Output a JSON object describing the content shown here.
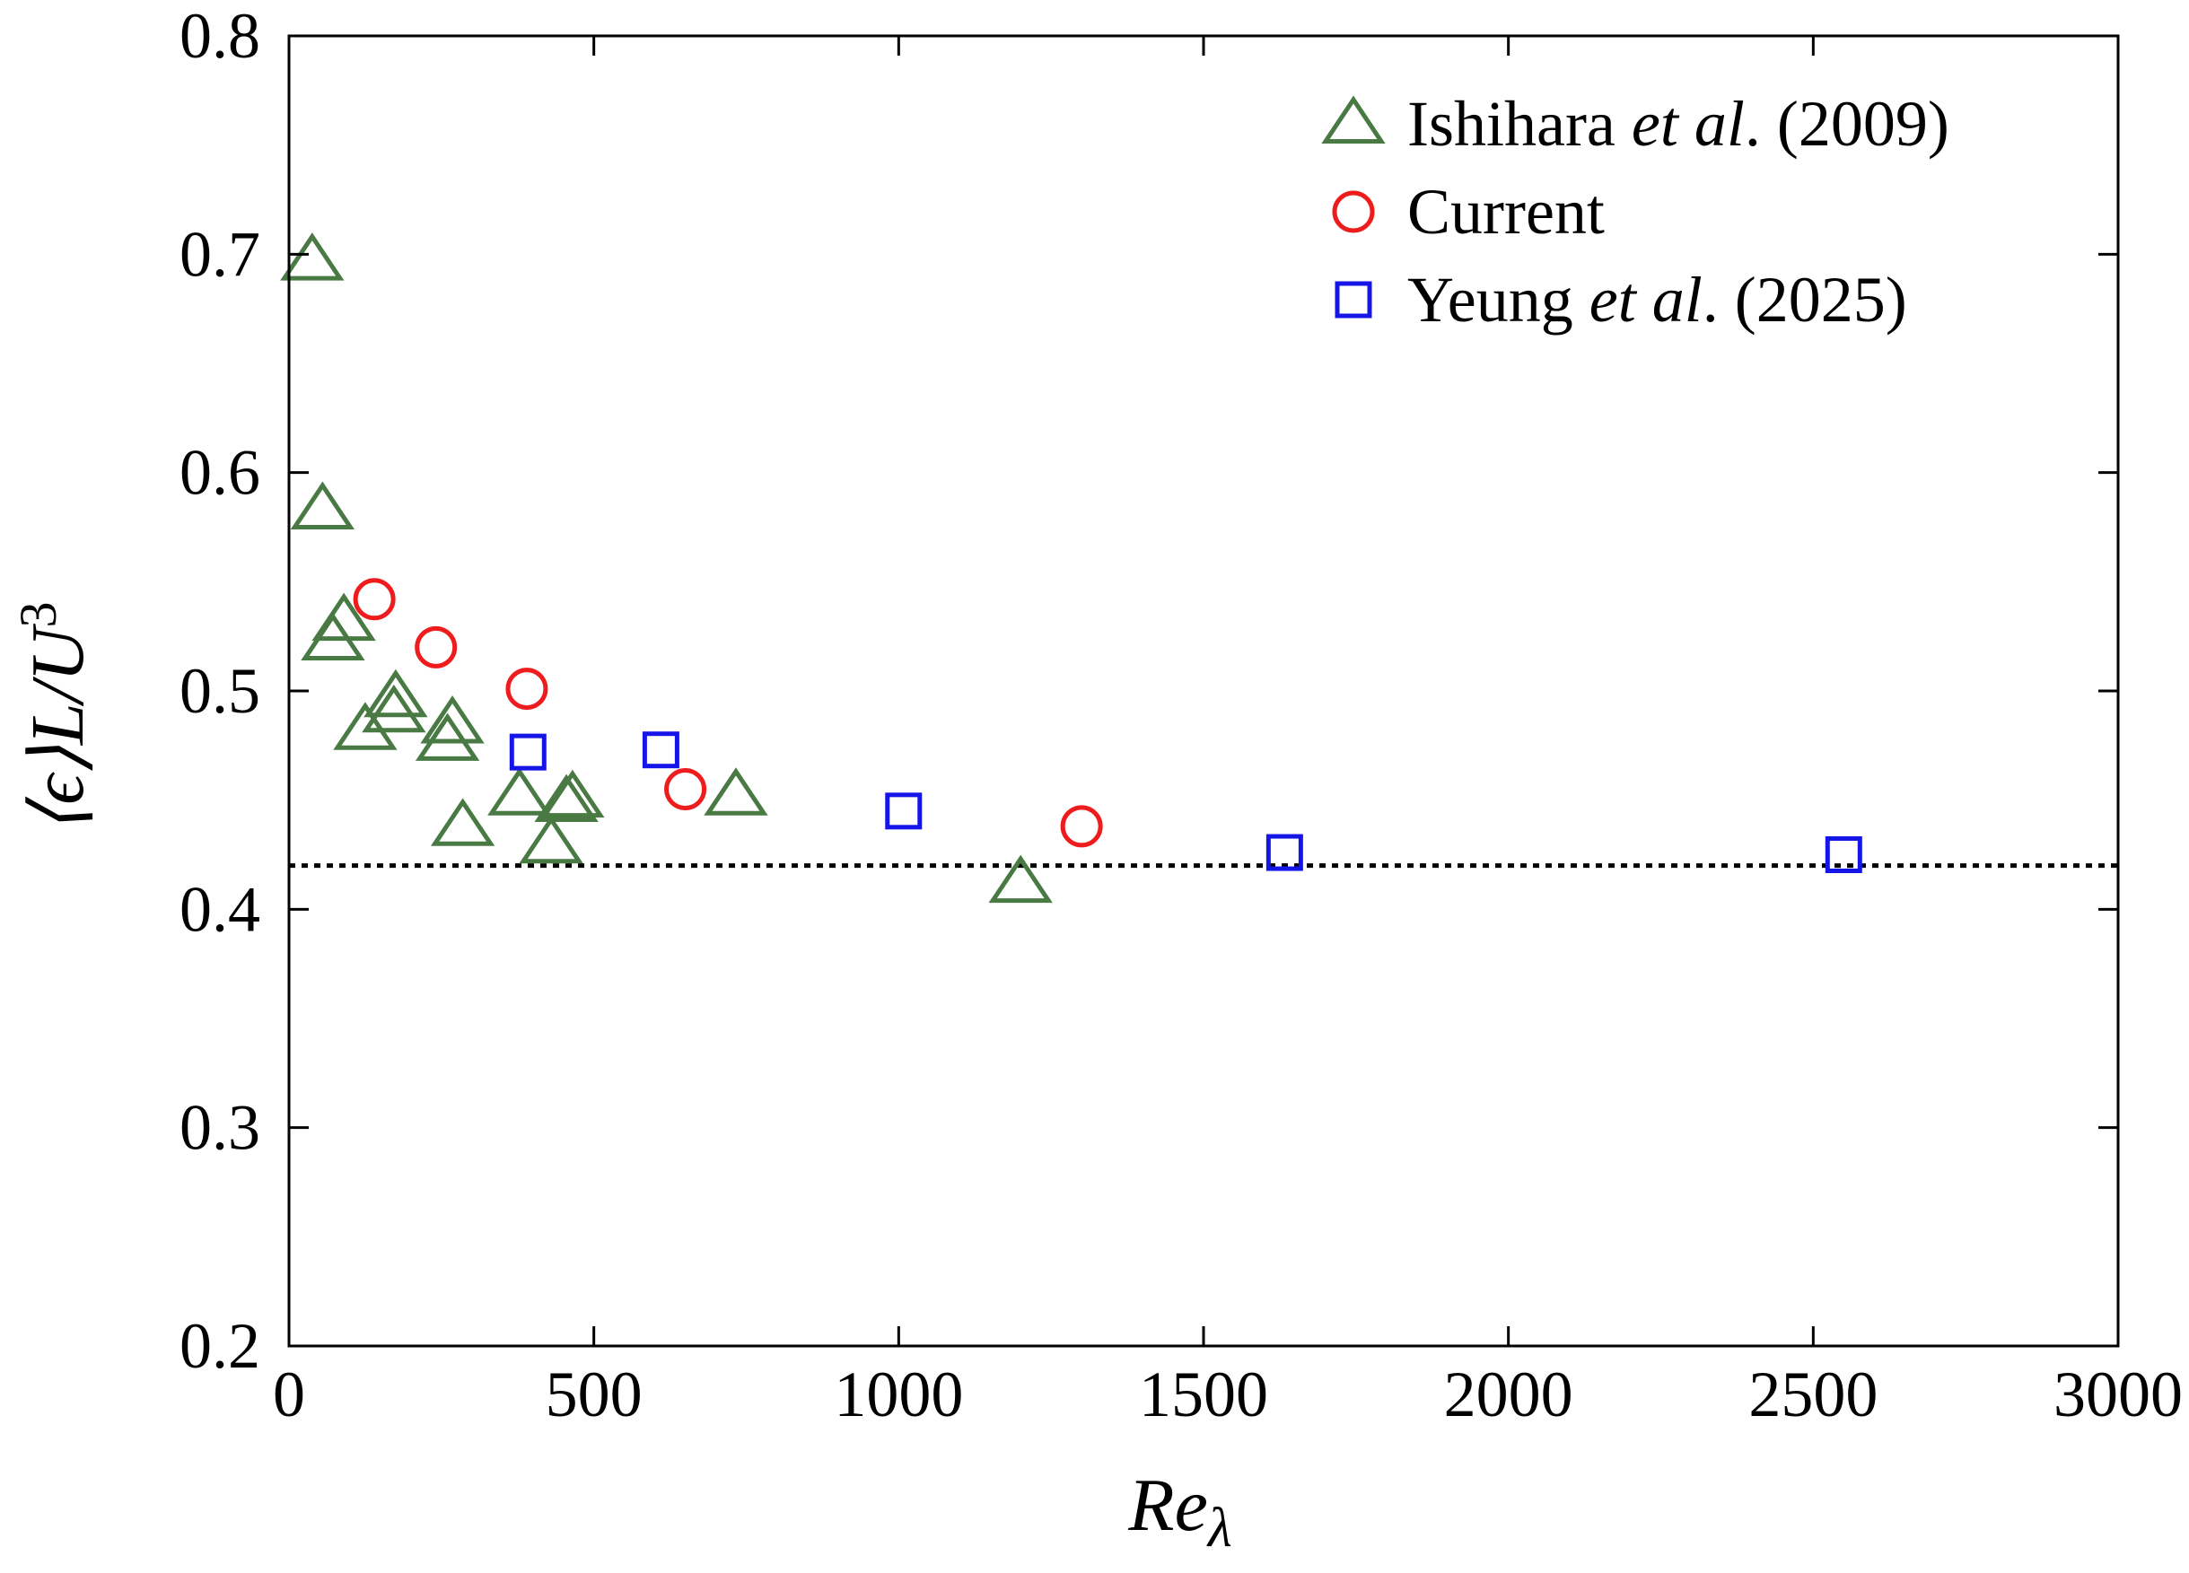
{
  "chart_data": {
    "type": "scatter",
    "xlabel": "Reλ",
    "ylabel": "⟨ϵ⟩L/U³",
    "xlim": [
      0,
      3000
    ],
    "ylim": [
      0.2,
      0.8
    ],
    "xticks": [
      "0",
      "500",
      "1000",
      "1500",
      "2000",
      "2500",
      "3000"
    ],
    "yticks": [
      "0.2",
      "0.3",
      "0.4",
      "0.5",
      "0.6",
      "0.7",
      "0.8"
    ],
    "grid": false,
    "legend_position": "top-right",
    "reference_line": {
      "y": 0.42,
      "style": "dotted",
      "color": "#000000"
    },
    "series": [
      {
        "name": "Ishihara et al. (2009)",
        "legend_parts": [
          "Ishihara ",
          "et al",
          ". (2009)"
        ],
        "marker": "triangle",
        "color": "#4a7a44",
        "points": [
          [
            38,
            0.697
          ],
          [
            55,
            0.583
          ],
          [
            90,
            0.532
          ],
          [
            72,
            0.523
          ],
          [
            175,
            0.497
          ],
          [
            172,
            0.49
          ],
          [
            125,
            0.482
          ],
          [
            268,
            0.485
          ],
          [
            260,
            0.477
          ],
          [
            285,
            0.438
          ],
          [
            378,
            0.452
          ],
          [
            430,
            0.43
          ],
          [
            465,
            0.451
          ],
          [
            455,
            0.449
          ],
          [
            733,
            0.452
          ],
          [
            1200,
            0.412
          ]
        ]
      },
      {
        "name": "Current",
        "legend_parts": [
          "Current",
          "",
          ""
        ],
        "marker": "circle",
        "color": "#ee1c1c",
        "points": [
          [
            140,
            0.542
          ],
          [
            241,
            0.52
          ],
          [
            390,
            0.501
          ],
          [
            650,
            0.455
          ],
          [
            1300,
            0.438
          ]
        ]
      },
      {
        "name": "Yeung et al. (2025)",
        "legend_parts": [
          "Yeung ",
          "et al",
          ". (2025)"
        ],
        "marker": "square",
        "color": "#1515e8",
        "points": [
          [
            392,
            0.472
          ],
          [
            610,
            0.473
          ],
          [
            1008,
            0.445
          ],
          [
            1633,
            0.426
          ],
          [
            2550,
            0.425
          ]
        ]
      }
    ]
  }
}
